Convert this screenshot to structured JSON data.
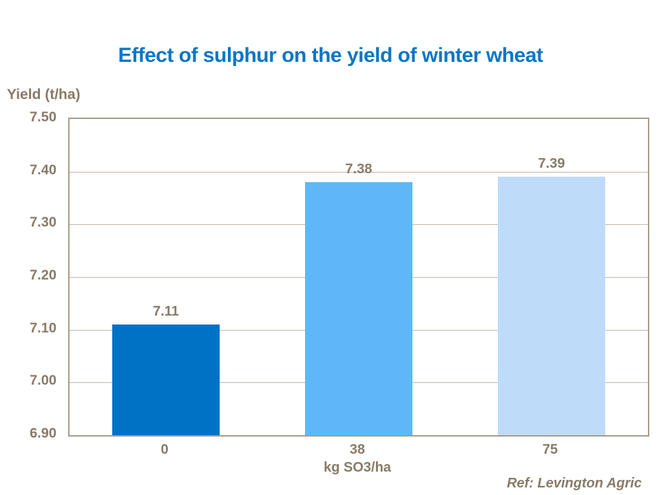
{
  "title": "Effect of sulphur on the yield of winter wheat",
  "reference": "Ref: Levington Agric",
  "colors": {
    "title_blue": "#0b76c6",
    "label_brown": "#8a7a66",
    "plot_border": "#a79b8c",
    "gridline": "#c0b5a6",
    "background": "#ffffff"
  },
  "chart_data": {
    "type": "bar",
    "title": "Effect of sulphur on the yield of winter wheat",
    "categories": [
      "0",
      "38",
      "75"
    ],
    "values": [
      7.11,
      7.38,
      7.39
    ],
    "data_labels": [
      "7.11",
      "7.38",
      "7.39"
    ],
    "bar_colors": [
      "#0072c6",
      "#5eb7f9",
      "#bedcf9"
    ],
    "xlabel": "kg SO3/ha",
    "ylabel": "Yield (t/ha)",
    "ylim": [
      6.9,
      7.5
    ],
    "ytick_step": 0.1,
    "ytick_labels": [
      "7.50",
      "7.40",
      "7.30",
      "7.20",
      "7.10",
      "7.00",
      "6.90"
    ],
    "grid": true,
    "legend": "none",
    "annotations": [
      "Ref: Levington Agric"
    ]
  }
}
